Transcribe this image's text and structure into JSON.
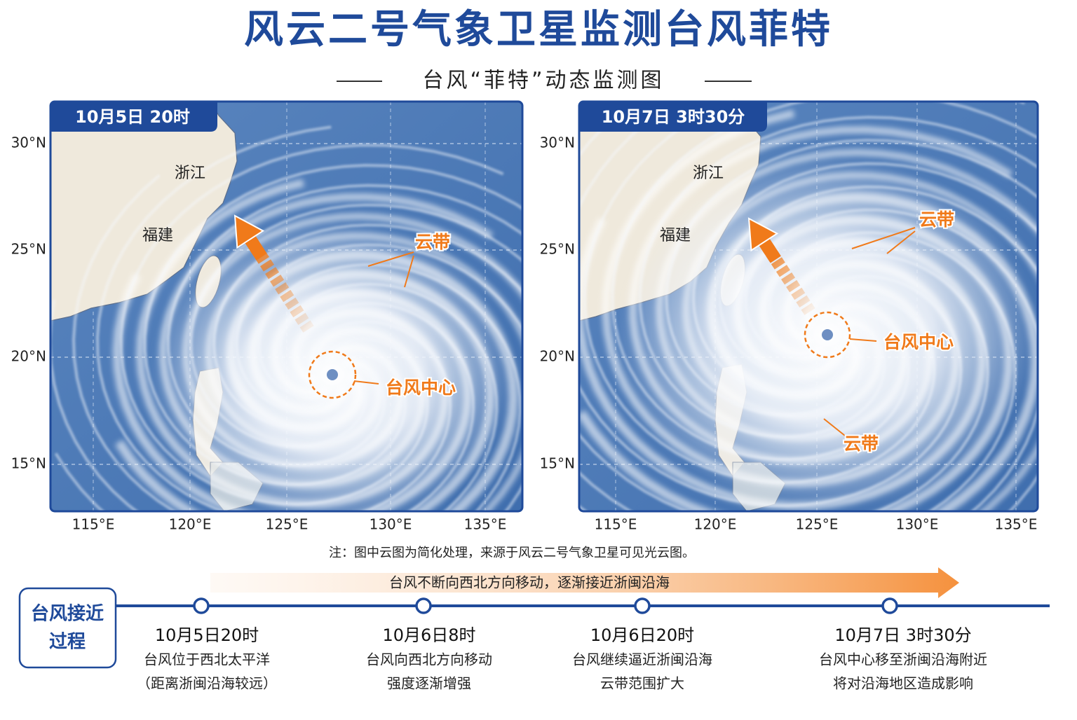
{
  "header": {
    "title": "风云二号气象卫星监测台风菲特",
    "subtitle": "台风“菲特”动态监测图"
  },
  "panels": [
    {
      "time": "10月5日 20时",
      "lat_labels": [
        "30°N",
        "25°N",
        "20°N",
        "15°N"
      ],
      "lon_labels": [
        "115°E",
        "120°E",
        "125°E",
        "130°E",
        "135°E"
      ],
      "places": [
        "浙江",
        "福建"
      ],
      "annotations": [
        "云带",
        "台风中心"
      ]
    },
    {
      "time": "10月7日 3时30分",
      "lat_labels": [
        "30°N",
        "25°N",
        "20°N",
        "15°N"
      ],
      "lon_labels": [
        "115°E",
        "120°E",
        "125°E",
        "130°E",
        "135°E"
      ],
      "places": [
        "浙江",
        "福建"
      ],
      "annotations": [
        "云带",
        "台风中心",
        "云带"
      ]
    }
  ],
  "note": "注：图中云图为简化处理，来源于风云二号气象卫星可见光云图。",
  "timeline": {
    "label": [
      "台风接近",
      "过程"
    ],
    "arrow_text": "台风不断向西北方向移动，逐渐接近浙闽沿海",
    "items": [
      {
        "time": "10月5日20时",
        "lines": [
          "台风位于西北太平洋",
          "（距离浙闽沿海较远）"
        ]
      },
      {
        "time": "10月6日8时",
        "lines": [
          "台风向西北方向移动",
          "强度逐渐增强"
        ]
      },
      {
        "time": "10月6日20时",
        "lines": [
          "台风继续逼近浙闽沿海",
          "云带范围扩大"
        ]
      },
      {
        "time": "10月7日 3时30分",
        "lines": [
          "台风中心移至浙闽沿海附近",
          "将对沿海地区造成影响"
        ]
      }
    ]
  }
}
